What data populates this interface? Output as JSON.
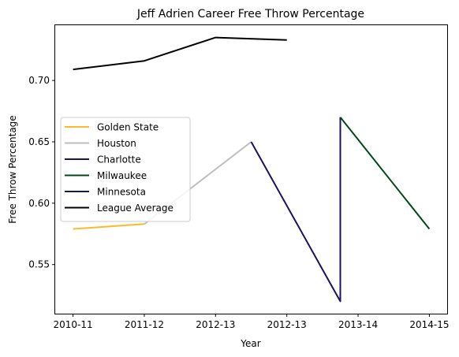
{
  "chart_data": {
    "type": "line",
    "title": "Jeff Adrien Career Free Throw Percentage",
    "xlabel": "Year",
    "ylabel": "Free Throw Percentage",
    "x_ticks": [
      {
        "value": 0.0,
        "label": "2010-11"
      },
      {
        "value": 1.0,
        "label": "2011-12"
      },
      {
        "value": 2.0,
        "label": "2012-13"
      },
      {
        "value": 3.0,
        "label": "2012-13"
      },
      {
        "value": 4.0,
        "label": "2013-14"
      },
      {
        "value": 5.0,
        "label": "2014-15"
      }
    ],
    "y_ticks": [
      0.55,
      0.6,
      0.65,
      0.7
    ],
    "xlim": [
      -0.25,
      5.25
    ],
    "ylim": [
      0.51,
      0.745
    ],
    "grid": false,
    "legend_position": "center-left",
    "series": [
      {
        "name": "Golden State",
        "color": "#FDB927",
        "points": [
          [
            0.0,
            0.579
          ],
          [
            1.0,
            0.583
          ]
        ]
      },
      {
        "name": "Houston",
        "color": "#BEBEBE",
        "points": [
          [
            1.0,
            0.583
          ],
          [
            2.5,
            0.65
          ]
        ]
      },
      {
        "name": "Charlotte",
        "color": "#1D1160",
        "points": [
          [
            2.5,
            0.65
          ],
          [
            3.75,
            0.52
          ],
          [
            3.75,
            0.67
          ]
        ]
      },
      {
        "name": "Milwaukee",
        "color": "#00471B",
        "points": [
          [
            3.75,
            0.67
          ],
          [
            5.0,
            0.579
          ]
        ]
      },
      {
        "name": "Minnesota",
        "color": "#0C2340",
        "points": []
      },
      {
        "name": "League Average",
        "color": "#000000",
        "points": [
          [
            0.0,
            0.709
          ],
          [
            1.0,
            0.716
          ],
          [
            2.0,
            0.735
          ],
          [
            3.0,
            0.733
          ]
        ]
      }
    ]
  }
}
